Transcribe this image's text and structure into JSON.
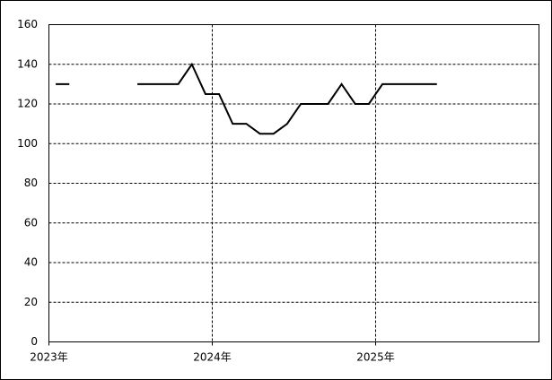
{
  "chart_data": {
    "type": "line",
    "x": [
      0.5,
      1.5,
      2.5,
      3.5,
      4.5,
      5.5,
      6.5,
      7.5,
      8.5,
      9.5,
      10.5,
      11.5,
      12.5,
      13.5,
      14.5,
      15.5,
      16.5,
      17.5,
      18.5,
      19.5,
      20.5,
      21.5,
      22.5,
      23.5,
      24.5,
      25.5,
      26.5,
      27.5,
      28.5
    ],
    "series": [
      {
        "color": "#000000",
        "values": [
          130,
          130,
          null,
          null,
          null,
          null,
          130,
          130,
          130,
          130,
          140,
          125,
          125,
          110,
          110,
          105,
          105,
          110,
          120,
          120,
          120,
          130,
          120,
          120,
          130,
          130,
          130,
          130,
          130
        ]
      }
    ],
    "xlim": [
      0,
      36
    ],
    "xticks": [
      {
        "value": 0,
        "label": "2023年"
      },
      {
        "value": 12,
        "label": "2024年"
      },
      {
        "value": 24,
        "label": "2025年"
      }
    ],
    "ylim": [
      0,
      160
    ],
    "yticks": [
      0,
      20,
      40,
      60,
      80,
      100,
      120,
      140,
      160
    ],
    "grid": true
  }
}
